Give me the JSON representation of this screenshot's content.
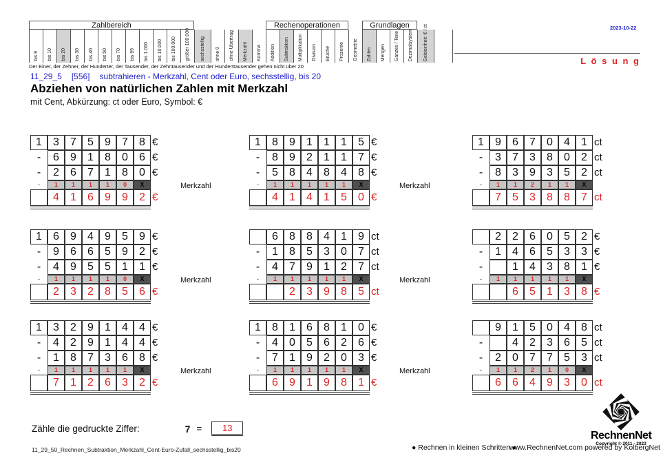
{
  "page": {
    "date": "2023-10-22",
    "loesung": "L ö s u n g"
  },
  "catalog": {
    "id": "11_29_5",
    "number": "[556]",
    "description": "subtrahieren - Merkzahl, Cent oder Euro, sechsstellig, bis 20"
  },
  "title": "Abziehen von natürlichen Zahlen mit Merkzahl",
  "subtitle": "mit Cent, Abkürzung: ct oder Euro, Symbol: €",
  "header": {
    "note": "Der Einer, der Zehner, der Hunderter, der Tausender, der Zehntausender und der Hunderttausender gehen nicht über 20",
    "groups": [
      {
        "title": "Zahlbereich",
        "cols": [
          {
            "label": "bis 9"
          },
          {
            "label": "bis 10"
          },
          {
            "label": "bis 20",
            "shaded": true
          },
          {
            "label": "bis 30"
          },
          {
            "label": "bis 40"
          },
          {
            "label": "bis 50"
          },
          {
            "label": "bis 70"
          },
          {
            "label": "bis 99"
          },
          {
            "label": "bis 1.000"
          },
          {
            "label": "bis 10.000"
          },
          {
            "label": "bis 100.000"
          },
          {
            "label": "größer 100.000"
          }
        ]
      },
      {
        "title": "",
        "cols": [
          {
            "label": "sechsstellig",
            "shaded": true,
            "wide": true
          },
          {
            "label": "ohne 0"
          },
          {
            "label": "ohne Übertrag"
          },
          {
            "label": "Merkzahl",
            "shaded": true
          },
          {
            "label": "Komma"
          }
        ]
      },
      {
        "title": "Rechenoperationen",
        "cols": [
          {
            "label": "Addition"
          },
          {
            "label": "Subtraktion",
            "shaded": true
          },
          {
            "label": "Multiplikation"
          },
          {
            "label": "Division"
          },
          {
            "label": "Brüche"
          },
          {
            "label": "Prozente"
          }
        ]
      },
      {
        "title": "",
        "cols": [
          {
            "label": "Geometrie"
          }
        ]
      },
      {
        "title": "Grundlagen",
        "cols": [
          {
            "label": "Zahlen",
            "shaded": true
          },
          {
            "label": "Mengen"
          },
          {
            "label": "Ganzes / Teile"
          },
          {
            "label": "Dezimalsystem"
          }
        ]
      },
      {
        "title": "",
        "cols": [
          {
            "label": "Geldeinheit: € / ct",
            "shaded": true,
            "wide": true
          },
          {
            "label": "",
            "xwide": true
          }
        ]
      }
    ]
  },
  "labels": {
    "merkzahl": "Merkzahl",
    "minus": "-"
  },
  "problems": [
    {
      "unit": "€",
      "lead": "1",
      "minuend": [
        "3",
        "7",
        "5",
        "9",
        "7",
        "8"
      ],
      "sub1": [
        "6",
        "9",
        "1",
        "8",
        "0",
        "6"
      ],
      "sub2": [
        "2",
        "6",
        "7",
        "1",
        "8",
        "0"
      ],
      "merk": [
        "1",
        "1",
        "1",
        "1",
        "0",
        "X"
      ],
      "result": [
        "4",
        "1",
        "6",
        "9",
        "9",
        "2"
      ],
      "show_merk_label": true
    },
    {
      "unit": "€",
      "lead": "1",
      "minuend": [
        "8",
        "9",
        "1",
        "1",
        "1",
        "5"
      ],
      "sub1": [
        "8",
        "9",
        "2",
        "1",
        "1",
        "7"
      ],
      "sub2": [
        "5",
        "8",
        "4",
        "8",
        "4",
        "8"
      ],
      "merk": [
        "1",
        "1",
        "1",
        "1",
        "1",
        "X"
      ],
      "result": [
        "4",
        "1",
        "4",
        "1",
        "5",
        "0"
      ],
      "show_merk_label": true
    },
    {
      "unit": "ct",
      "lead": "1",
      "minuend": [
        "9",
        "6",
        "7",
        "0",
        "4",
        "1"
      ],
      "sub1": [
        "3",
        "7",
        "3",
        "8",
        "0",
        "2"
      ],
      "sub2": [
        "8",
        "3",
        "9",
        "3",
        "5",
        "2"
      ],
      "merk": [
        "1",
        "1",
        "2",
        "1",
        "1",
        "X"
      ],
      "result": [
        "7",
        "5",
        "3",
        "8",
        "8",
        "7"
      ],
      "show_merk_label": false
    },
    {
      "unit": "€",
      "lead": "1",
      "minuend": [
        "6",
        "9",
        "4",
        "9",
        "5",
        "9"
      ],
      "sub1": [
        "9",
        "6",
        "6",
        "5",
        "9",
        "2"
      ],
      "sub2": [
        "4",
        "9",
        "5",
        "5",
        "1",
        "1"
      ],
      "merk": [
        "1",
        "1",
        "1",
        "1",
        "0",
        "X"
      ],
      "result": [
        "2",
        "3",
        "2",
        "8",
        "5",
        "6"
      ],
      "show_merk_label": true
    },
    {
      "unit": "ct",
      "lead": "",
      "minuend": [
        "6",
        "8",
        "8",
        "4",
        "1",
        "9"
      ],
      "sub1": [
        "1",
        "8",
        "5",
        "3",
        "0",
        "7"
      ],
      "sub2": [
        "4",
        "7",
        "9",
        "1",
        "2",
        "7"
      ],
      "merk": [
        "1",
        "1",
        "1",
        "1",
        "1",
        "X"
      ],
      "result": [
        "",
        "2",
        "3",
        "9",
        "8",
        "5"
      ],
      "show_merk_label": true
    },
    {
      "unit": "€",
      "lead": "",
      "minuend": [
        "2",
        "2",
        "6",
        "0",
        "5",
        "2"
      ],
      "sub1": [
        "1",
        "4",
        "6",
        "5",
        "3",
        "3"
      ],
      "sub2": [
        "",
        "1",
        "4",
        "3",
        "8",
        "1"
      ],
      "merk": [
        "1",
        "1",
        "1",
        "1",
        "1",
        "X"
      ],
      "result": [
        "",
        "6",
        "5",
        "1",
        "3",
        "8"
      ],
      "show_merk_label": false
    },
    {
      "unit": "€",
      "lead": "1",
      "minuend": [
        "3",
        "2",
        "9",
        "1",
        "4",
        "4"
      ],
      "sub1": [
        "4",
        "2",
        "9",
        "1",
        "4",
        "4"
      ],
      "sub2": [
        "1",
        "8",
        "7",
        "3",
        "6",
        "8"
      ],
      "merk": [
        "1",
        "1",
        "1",
        "1",
        "1",
        "X"
      ],
      "result": [
        "7",
        "1",
        "2",
        "6",
        "3",
        "2"
      ],
      "show_merk_label": true
    },
    {
      "unit": "€",
      "lead": "1",
      "minuend": [
        "8",
        "1",
        "6",
        "8",
        "1",
        "0"
      ],
      "sub1": [
        "4",
        "0",
        "5",
        "6",
        "2",
        "6"
      ],
      "sub2": [
        "7",
        "1",
        "9",
        "2",
        "0",
        "3"
      ],
      "merk": [
        "1",
        "1",
        "1",
        "1",
        "1",
        "X"
      ],
      "result": [
        "6",
        "9",
        "1",
        "9",
        "8",
        "1"
      ],
      "show_merk_label": true
    },
    {
      "unit": "ct",
      "lead": "",
      "minuend": [
        "9",
        "1",
        "5",
        "0",
        "4",
        "8"
      ],
      "sub1": [
        "",
        "4",
        "2",
        "3",
        "6",
        "5"
      ],
      "sub2": [
        "2",
        "0",
        "7",
        "7",
        "5",
        "3"
      ],
      "merk": [
        "1",
        "1",
        "2",
        "1",
        "0",
        "X"
      ],
      "result": [
        "6",
        "6",
        "4",
        "9",
        "3",
        "0"
      ],
      "show_merk_label": false
    }
  ],
  "count_line": {
    "prompt": "Zähle die gedruckte Ziffer:",
    "digit": "7",
    "equals": "=",
    "answer": "13"
  },
  "footer": {
    "filename": "11_29_50_Rechnen_Subtraktion_Merkzahl_Cent-Euro-Zufall_sechsstellig_bis20",
    "center": "● Rechnen in kleinen Schritten ●",
    "right": "www.RechnenNet.com powered by KolbergNet"
  },
  "logo": {
    "name": "RechnenNet",
    "copyright": "Copyright © 2011 - 2023"
  },
  "colors": {
    "red": "#dd2222",
    "blue": "#2222cc",
    "shade": "#d4d4d4",
    "merk_bg": "#c6c6c6",
    "merk_x_bg": "#4f4f4f"
  }
}
